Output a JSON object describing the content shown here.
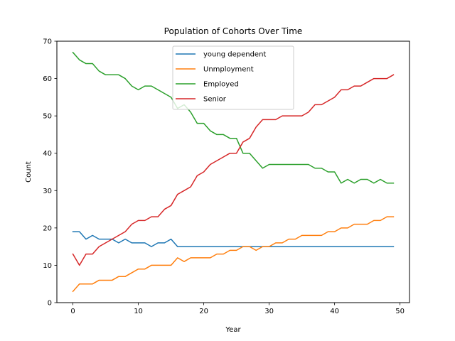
{
  "chart_data": {
    "type": "line",
    "title": "Population of Cohorts Over Time",
    "xlabel": "Year",
    "ylabel": "Count",
    "xlim": [
      -2.45,
      51.45
    ],
    "ylim": [
      0,
      70
    ],
    "xticks": [
      0,
      10,
      20,
      30,
      40,
      50
    ],
    "yticks": [
      0,
      10,
      20,
      30,
      40,
      50,
      60,
      70
    ],
    "legend_position": "top-center",
    "x": [
      0,
      1,
      2,
      3,
      4,
      5,
      6,
      7,
      8,
      9,
      10,
      11,
      12,
      13,
      14,
      15,
      16,
      17,
      18,
      19,
      20,
      21,
      22,
      23,
      24,
      25,
      26,
      27,
      28,
      29,
      30,
      31,
      32,
      33,
      34,
      35,
      36,
      37,
      38,
      39,
      40,
      41,
      42,
      43,
      44,
      45,
      46,
      47,
      48,
      49
    ],
    "series": [
      {
        "name": "young dependent",
        "color": "#1f77b4",
        "values": [
          19,
          19,
          17,
          18,
          17,
          17,
          17,
          16,
          17,
          16,
          16,
          16,
          15,
          16,
          16,
          17,
          15,
          15,
          15,
          15,
          15,
          15,
          15,
          15,
          15,
          15,
          15,
          15,
          15,
          15,
          15,
          15,
          15,
          15,
          15,
          15,
          15,
          15,
          15,
          15,
          15,
          15,
          15,
          15,
          15,
          15,
          15,
          15,
          15,
          15
        ]
      },
      {
        "name": "Unmployment",
        "color": "#ff7f0e",
        "values": [
          3,
          5,
          5,
          5,
          6,
          6,
          6,
          7,
          7,
          8,
          9,
          9,
          10,
          10,
          10,
          10,
          12,
          11,
          12,
          12,
          12,
          12,
          13,
          13,
          14,
          14,
          15,
          15,
          14,
          15,
          15,
          16,
          16,
          17,
          17,
          18,
          18,
          18,
          18,
          19,
          19,
          20,
          20,
          21,
          21,
          21,
          22,
          22,
          23,
          23
        ]
      },
      {
        "name": "Employed",
        "color": "#2ca02c",
        "values": [
          67,
          65,
          64,
          64,
          62,
          61,
          61,
          61,
          60,
          58,
          57,
          58,
          58,
          57,
          56,
          55,
          52,
          53,
          51,
          48,
          48,
          46,
          45,
          45,
          44,
          44,
          40,
          40,
          38,
          36,
          37,
          37,
          37,
          37,
          37,
          37,
          37,
          36,
          36,
          35,
          35,
          32,
          33,
          32,
          33,
          33,
          32,
          33,
          32,
          32
        ]
      },
      {
        "name": "Senior",
        "color": "#d62728",
        "values": [
          13,
          10,
          13,
          13,
          15,
          16,
          17,
          18,
          19,
          21,
          22,
          22,
          23,
          23,
          25,
          26,
          29,
          30,
          31,
          34,
          35,
          37,
          38,
          39,
          40,
          40,
          43,
          44,
          47,
          49,
          49,
          49,
          50,
          50,
          50,
          50,
          51,
          53,
          53,
          54,
          55,
          57,
          57,
          58,
          58,
          59,
          60,
          60,
          60,
          61
        ]
      }
    ]
  }
}
